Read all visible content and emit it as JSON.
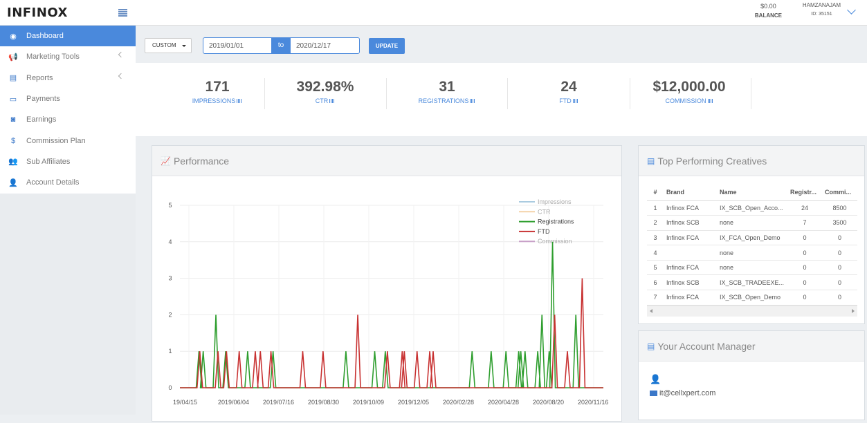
{
  "brand": {
    "logo_text": "INFINOX"
  },
  "sidebar": {
    "items": [
      {
        "label": "Dashboard",
        "icon": "dashboard-icon",
        "glyph": "◉",
        "active": true,
        "has_chevron": false
      },
      {
        "label": "Marketing Tools",
        "icon": "bullhorn-icon",
        "glyph": "📢",
        "active": false,
        "has_chevron": true
      },
      {
        "label": "Reports",
        "icon": "list-alt-icon",
        "glyph": "▤",
        "active": false,
        "has_chevron": true
      },
      {
        "label": "Payments",
        "icon": "credit-card-icon",
        "glyph": "▭",
        "active": false,
        "has_chevron": false
      },
      {
        "label": "Earnings",
        "icon": "money-icon",
        "glyph": "◙",
        "active": false,
        "has_chevron": false
      },
      {
        "label": "Commission Plan",
        "icon": "dollar-icon",
        "glyph": "$",
        "active": false,
        "has_chevron": false
      },
      {
        "label": "Sub Affiliates",
        "icon": "users-icon",
        "glyph": "👥",
        "active": false,
        "has_chevron": false
      },
      {
        "label": "Account Details",
        "icon": "user-icon",
        "glyph": "👤",
        "active": false,
        "has_chevron": false
      }
    ]
  },
  "header": {
    "balance_amount": "$0.00",
    "balance_label": "BALANCE",
    "username": "HAMZANAJAM",
    "user_id": "ID: 35151"
  },
  "filter": {
    "range_select": "CUSTOM",
    "date_from": "2019/01/01",
    "to_label": "to",
    "date_to": "2020/12/17",
    "update_label": "UPDATE"
  },
  "stats": [
    {
      "value": "171",
      "label": "IMPRESSIONS"
    },
    {
      "value": "392.98%",
      "label": "CTR"
    },
    {
      "value": "31",
      "label": "REGISTRATIONS"
    },
    {
      "value": "24",
      "label": "FTD"
    },
    {
      "value": "$12,000.00",
      "label": "COMMISSION"
    }
  ],
  "performance": {
    "title": "Performance",
    "chart_data": {
      "type": "line",
      "x_ticks": [
        "19/04/15",
        "2019/06/04",
        "2019/07/16",
        "2019/08/30",
        "2019/10/09",
        "2019/12/05",
        "2020/02/28",
        "2020/04/28",
        "2020/08/20",
        "2020/11/16"
      ],
      "ylim": [
        0,
        5
      ],
      "y_ticks": [
        0,
        1,
        2,
        3,
        4,
        5
      ],
      "grid": true,
      "legend_position": "top-right",
      "series": [
        {
          "name": "Impressions",
          "color": "#aacbe0",
          "spikes": []
        },
        {
          "name": "CTR",
          "color": "#f4d2a8",
          "spikes": []
        },
        {
          "name": "Registrations",
          "color": "#2e9e2e",
          "spikes": [
            [
              0.045,
              1
            ],
            [
              0.055,
              1
            ],
            [
              0.085,
              2
            ],
            [
              0.108,
              1
            ],
            [
              0.16,
              1
            ],
            [
              0.22,
              1
            ],
            [
              0.392,
              1
            ],
            [
              0.46,
              1
            ],
            [
              0.485,
              1
            ],
            [
              0.69,
              1
            ],
            [
              0.735,
              1
            ],
            [
              0.77,
              1
            ],
            [
              0.8,
              1
            ],
            [
              0.805,
              1
            ],
            [
              0.815,
              1
            ],
            [
              0.845,
              1
            ],
            [
              0.855,
              2
            ],
            [
              0.872,
              1
            ],
            [
              0.88,
              4
            ],
            [
              0.935,
              2
            ]
          ]
        },
        {
          "name": "FTD",
          "color": "#c83232",
          "spikes": [
            [
              0.047,
              1
            ],
            [
              0.09,
              1
            ],
            [
              0.11,
              1
            ],
            [
              0.14,
              1
            ],
            [
              0.178,
              1
            ],
            [
              0.19,
              1
            ],
            [
              0.215,
              1
            ],
            [
              0.29,
              1
            ],
            [
              0.338,
              1
            ],
            [
              0.42,
              2
            ],
            [
              0.49,
              1
            ],
            [
              0.53,
              1
            ],
            [
              0.525,
              1
            ],
            [
              0.56,
              1
            ],
            [
              0.59,
              1
            ],
            [
              0.598,
              1
            ],
            [
              0.885,
              2
            ],
            [
              0.915,
              1
            ],
            [
              0.95,
              3
            ]
          ]
        },
        {
          "name": "Commission",
          "color": "#c8a0c8",
          "spikes": []
        }
      ]
    }
  },
  "creatives": {
    "title": "Top Performing Creatives",
    "columns": [
      "#",
      "Brand",
      "Name",
      "Registr...",
      "Commi..."
    ],
    "rows": [
      {
        "n": "1",
        "brand": "Infinox FCA",
        "name": "IX_SCB_Open_Acco...",
        "reg": "24",
        "com": "8500"
      },
      {
        "n": "2",
        "brand": "Infinox SCB",
        "name": "none",
        "reg": "7",
        "com": "3500"
      },
      {
        "n": "3",
        "brand": "Infinox FCA",
        "name": "IX_FCA_Open_Demo",
        "reg": "0",
        "com": "0"
      },
      {
        "n": "4",
        "brand": "",
        "name": "none",
        "reg": "0",
        "com": "0"
      },
      {
        "n": "5",
        "brand": "Infinox FCA",
        "name": "none",
        "reg": "0",
        "com": "0"
      },
      {
        "n": "6",
        "brand": "Infinox SCB",
        "name": "IX_SCB_TRADEEXE...",
        "reg": "0",
        "com": "0"
      },
      {
        "n": "7",
        "brand": "Infinox FCA",
        "name": "IX_SCB_Open_Demo",
        "reg": "0",
        "com": "0"
      }
    ]
  },
  "manager": {
    "title": "Your Account Manager",
    "email": "it@cellxpert.com"
  }
}
